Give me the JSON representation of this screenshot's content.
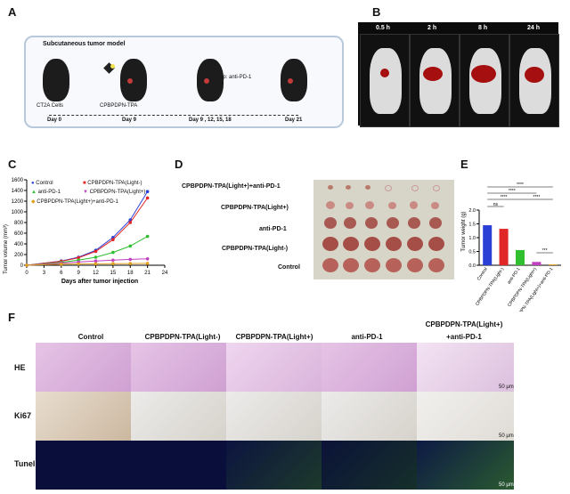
{
  "panel_labels": {
    "a": "A",
    "b": "B",
    "c": "C",
    "d": "D",
    "e": "E",
    "f": "F"
  },
  "panel_a": {
    "title": "Subcutaneous tumor model",
    "labels": [
      "CT2A Cells",
      "CPBPDPN-TPA",
      "ip: anti-PD-1"
    ],
    "timeline_days": [
      "Day 0",
      "Day 9",
      "Day 9 ,  12, 15, 18",
      "Day 21"
    ]
  },
  "panel_b": {
    "timepoints": [
      "0.5 h",
      "2 h",
      "8 h",
      "24 h"
    ]
  },
  "panel_c": {
    "legend": [
      "Control",
      "CPBPDPN-TPA(Light-)",
      "anti-PD-1",
      "CPBPDPN-TPA(Light+)",
      "CPBPDPN-TPA(Light+)+anti-PD-1"
    ],
    "colors": [
      "#2a3fd6",
      "#e02626",
      "#2fbf2f",
      "#c040c0",
      "#e0a020"
    ]
  },
  "panel_d": {
    "row_labels": [
      "CPBPDPN-TPA(Light+)+anti-PD-1",
      "CPBPDPN-TPA(Light+)",
      "anti-PD-1",
      "CPBPDPN-TPA(Light-)",
      "Control"
    ]
  },
  "panel_e": {
    "sig": [
      "****",
      "****",
      "****",
      "****",
      "ns",
      "***"
    ]
  },
  "panel_f": {
    "columns": [
      "Control",
      "CPBPDPN-TPA(Light-)",
      "CPBPDPN-TPA(Light+)",
      "anti-PD-1",
      "CPBPDPN-TPA(Light+)",
      "+anti-PD-1"
    ],
    "rows": [
      "HE",
      "Ki67",
      "Tunel"
    ],
    "scale_bar": "50 μm"
  },
  "chart_data": [
    {
      "type": "line",
      "xlabel": "Days after tumor injection",
      "ylabel": "Tumor volume (mm³)",
      "x": [
        0,
        6,
        9,
        12,
        15,
        18,
        21
      ],
      "xlim": [
        0,
        24
      ],
      "ylim": [
        0,
        1600
      ],
      "xticks": [
        0,
        3,
        6,
        9,
        12,
        15,
        18,
        21,
        24
      ],
      "yticks": [
        0,
        200,
        400,
        600,
        800,
        1000,
        1200,
        1400,
        1600
      ],
      "series": [
        {
          "name": "Control",
          "values": [
            0,
            80,
            150,
            280,
            520,
            850,
            1380
          ]
        },
        {
          "name": "CPBPDPN-TPA(Light-)",
          "values": [
            0,
            75,
            140,
            260,
            480,
            800,
            1260
          ]
        },
        {
          "name": "anti-PD-1",
          "values": [
            0,
            55,
            95,
            150,
            240,
            360,
            540
          ]
        },
        {
          "name": "CPBPDPN-TPA(Light+)",
          "values": [
            0,
            40,
            60,
            80,
            95,
            110,
            120
          ]
        },
        {
          "name": "CPBPDPN-TPA(Light+)+anti-PD-1",
          "values": [
            0,
            20,
            25,
            28,
            30,
            32,
            35
          ]
        }
      ]
    },
    {
      "type": "bar",
      "ylabel": "Tumor weight (g)",
      "categories": [
        "Control",
        "CPBPDPN-TPA(Light-)",
        "anti-PD-1",
        "CPBPDPN-TPA(Light+)",
        "CPBPDPN-TPA(Light+)+anti-PD-1"
      ],
      "values": [
        1.45,
        1.32,
        0.55,
        0.12,
        0.03
      ],
      "ylim": [
        0,
        2.0
      ],
      "yticks": [
        0.0,
        0.5,
        1.0,
        1.5,
        2.0
      ]
    }
  ]
}
